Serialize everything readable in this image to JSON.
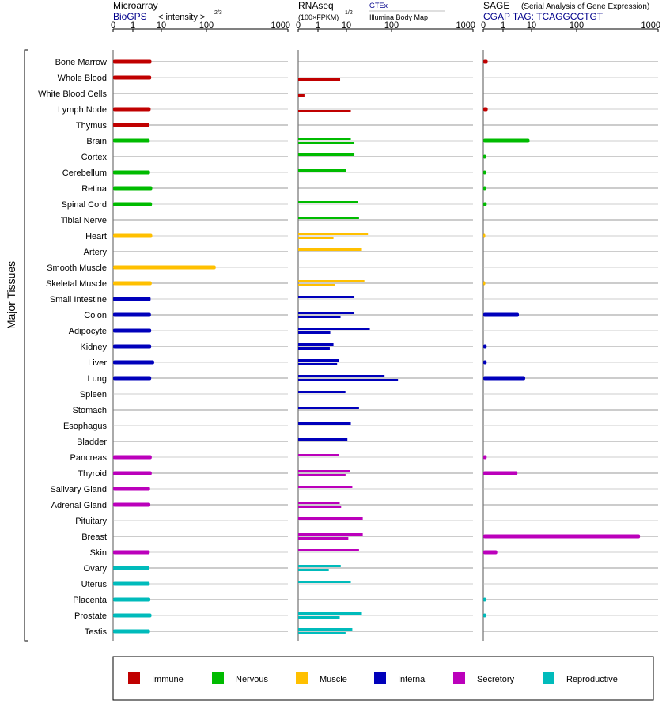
{
  "header": {
    "microarray": {
      "title": "Microarray",
      "source": "BioGPS",
      "scale_label": "< intensity >",
      "scale_exp": "2/3"
    },
    "rnaseq": {
      "title": "RNAseq",
      "source": "GTEx",
      "sub_source": "Illumina Body Map",
      "scale_label": "(100×FPKM)",
      "scale_exp": "1/2"
    },
    "sage": {
      "title": "SAGE",
      "subtitle": "(Serial Analysis of Gene Expression)",
      "tag": "CGAP TAG: TCAGGCCTGT"
    }
  },
  "y_axis_title": "Major Tissues",
  "legend": [
    {
      "label": "Immune",
      "color": "#c00000"
    },
    {
      "label": "Nervous",
      "color": "#00bb00"
    },
    {
      "label": "Muscle",
      "color": "#ffc000"
    },
    {
      "label": "Internal",
      "color": "#0000bb"
    },
    {
      "label": "Secretory",
      "color": "#bb00bb"
    },
    {
      "label": "Reproductive",
      "color": "#00bbbb"
    }
  ],
  "chart_data": [
    {
      "type": "bar",
      "name": "Microarray",
      "xlim": [
        0,
        1000
      ],
      "xticks": [
        "0",
        "1",
        "10",
        "100",
        "1000"
      ],
      "categories": [
        "Bone Marrow",
        "Whole Blood",
        "White Blood Cells",
        "Lymph Node",
        "Thymus",
        "Brain",
        "Cortex",
        "Cerebellum",
        "Retina",
        "Spinal Cord",
        "Tibial Nerve",
        "Heart",
        "Artery",
        "Smooth Muscle",
        "Skeletal Muscle",
        "Small Intestine",
        "Colon",
        "Adipocyte",
        "Kidney",
        "Liver",
        "Lung",
        "Spleen",
        "Stomach",
        "Esophagus",
        "Bladder",
        "Pancreas",
        "Thyroid",
        "Salivary Gland",
        "Adrenal Gland",
        "Pituitary",
        "Breast",
        "Skin",
        "Ovary",
        "Uterus",
        "Placenta",
        "Prostate",
        "Testis"
      ],
      "groups": [
        "Immune",
        "Immune",
        "Immune",
        "Immune",
        "Immune",
        "Nervous",
        "Nervous",
        "Nervous",
        "Nervous",
        "Nervous",
        "Nervous",
        "Muscle",
        "Muscle",
        "Muscle",
        "Muscle",
        "Internal",
        "Internal",
        "Internal",
        "Internal",
        "Internal",
        "Internal",
        "Internal",
        "Internal",
        "Internal",
        "Internal",
        "Secretory",
        "Secretory",
        "Secretory",
        "Secretory",
        "Secretory",
        "Secretory",
        "Secretory",
        "Reproductive",
        "Reproductive",
        "Reproductive",
        "Reproductive",
        "Reproductive"
      ],
      "values": [
        [
          4.5
        ],
        [
          4.4
        ],
        [],
        [
          4.2
        ],
        [
          3.8
        ],
        [
          3.9
        ],
        [],
        [
          4.0
        ],
        [
          4.8
        ],
        [
          4.7
        ],
        [],
        [
          4.8
        ],
        [],
        [
          130
        ],
        [
          4.6
        ],
        [
          4.2
        ],
        [
          4.3
        ],
        [
          4.4
        ],
        [
          4.4
        ],
        [
          5.6
        ],
        [
          4.4
        ],
        [],
        [],
        [],
        [],
        [
          4.6
        ],
        [
          4.6
        ],
        [
          4.0
        ],
        [
          4.1
        ],
        [],
        [],
        [
          3.9
        ],
        [
          3.8
        ],
        [
          3.9
        ],
        [
          4.1
        ],
        [
          4.5
        ],
        [
          4.0
        ]
      ]
    },
    {
      "type": "bar",
      "name": "RNAseq",
      "xlim": [
        0,
        1000
      ],
      "xticks": [
        "0",
        "1",
        "10",
        "100",
        "1000"
      ],
      "categories": [
        "Bone Marrow",
        "Whole Blood",
        "White Blood Cells",
        "Lymph Node",
        "Thymus",
        "Brain",
        "Cortex",
        "Cerebellum",
        "Retina",
        "Spinal Cord",
        "Tibial Nerve",
        "Heart",
        "Artery",
        "Smooth Muscle",
        "Skeletal Muscle",
        "Small Intestine",
        "Colon",
        "Adipocyte",
        "Kidney",
        "Liver",
        "Lung",
        "Spleen",
        "Stomach",
        "Esophagus",
        "Bladder",
        "Pancreas",
        "Thyroid",
        "Salivary Gland",
        "Adrenal Gland",
        "Pituitary",
        "Breast",
        "Skin",
        "Ovary",
        "Uterus",
        "Placenta",
        "Prostate",
        "Testis"
      ],
      "groups": [
        "Immune",
        "Immune",
        "Immune",
        "Immune",
        "Immune",
        "Nervous",
        "Nervous",
        "Nervous",
        "Nervous",
        "Nervous",
        "Nervous",
        "Muscle",
        "Muscle",
        "Muscle",
        "Muscle",
        "Internal",
        "Internal",
        "Internal",
        "Internal",
        "Internal",
        "Internal",
        "Internal",
        "Internal",
        "Internal",
        "Internal",
        "Secretory",
        "Secretory",
        "Secretory",
        "Secretory",
        "Secretory",
        "Secretory",
        "Secretory",
        "Reproductive",
        "Reproductive",
        "Reproductive",
        "Reproductive",
        "Reproductive"
      ],
      "values": [
        [],
        [
          6.0
        ],
        [
          0.1
        ],
        [
          12.5
        ],
        [],
        [
          12.5,
          15
        ],
        [
          15
        ],
        [
          9.5
        ],
        [],
        [
          18
        ],
        [
          19
        ],
        [
          30,
          3.5
        ],
        [
          22
        ],
        [],
        [
          25,
          4
        ],
        [
          15
        ],
        [
          15,
          6.2
        ],
        [
          33,
          2.7
        ],
        [
          3.5,
          2.6
        ],
        [
          5.5,
          4.7
        ],
        [
          70,
          120
        ],
        [
          9.2
        ],
        [
          19
        ],
        [
          12.5
        ],
        [
          10.5
        ],
        [
          5.4
        ],
        [
          12,
          9.3
        ],
        [
          13.5
        ],
        [
          5.8,
          6.5
        ],
        [
          23
        ],
        [
          23,
          11
        ],
        [
          19
        ],
        [
          6.3,
          2.4
        ],
        [
          12.5
        ],
        [],
        [
          22,
          5.8
        ],
        [
          13.5,
          9.3
        ]
      ]
    },
    {
      "type": "bar",
      "name": "SAGE",
      "xlim": [
        0,
        1000
      ],
      "xticks": [
        "0",
        "1",
        "10",
        "100",
        "1000"
      ],
      "categories": [
        "Bone Marrow",
        "Whole Blood",
        "White Blood Cells",
        "Lymph Node",
        "Thymus",
        "Brain",
        "Cortex",
        "Cerebellum",
        "Retina",
        "Spinal Cord",
        "Tibial Nerve",
        "Heart",
        "Artery",
        "Smooth Muscle",
        "Skeletal Muscle",
        "Small Intestine",
        "Colon",
        "Adipocyte",
        "Kidney",
        "Liver",
        "Lung",
        "Spleen",
        "Stomach",
        "Esophagus",
        "Bladder",
        "Pancreas",
        "Thyroid",
        "Salivary Gland",
        "Adrenal Gland",
        "Pituitary",
        "Breast",
        "Skin",
        "Ovary",
        "Uterus",
        "Placenta",
        "Prostate",
        "Testis"
      ],
      "groups": [
        "Immune",
        "Immune",
        "Immune",
        "Immune",
        "Immune",
        "Nervous",
        "Nervous",
        "Nervous",
        "Nervous",
        "Nervous",
        "Nervous",
        "Muscle",
        "Muscle",
        "Muscle",
        "Muscle",
        "Internal",
        "Internal",
        "Internal",
        "Internal",
        "Internal",
        "Internal",
        "Internal",
        "Internal",
        "Internal",
        "Internal",
        "Secretory",
        "Secretory",
        "Secretory",
        "Secretory",
        "Secretory",
        "Secretory",
        "Secretory",
        "Reproductive",
        "Reproductive",
        "Reproductive",
        "Reproductive",
        "Reproductive"
      ],
      "values": [
        [
          0.05
        ],
        [],
        [],
        [
          0.05
        ],
        [],
        [
          8.5
        ],
        [
          0.02
        ],
        [
          0.02
        ],
        [
          0.02
        ],
        [
          0.03
        ],
        [],
        [
          0.01
        ],
        [],
        [],
        [
          0.01
        ],
        [],
        [
          3.6
        ],
        [],
        [
          0.03
        ],
        [
          0.03
        ],
        [
          6.0
        ],
        [],
        [],
        [],
        [],
        [
          0.03
        ],
        [
          3.2
        ],
        [],
        [],
        [],
        [
          600
        ],
        [
          0.5
        ],
        [],
        [],
        [
          0.02
        ],
        [
          0.02
        ],
        []
      ]
    }
  ]
}
